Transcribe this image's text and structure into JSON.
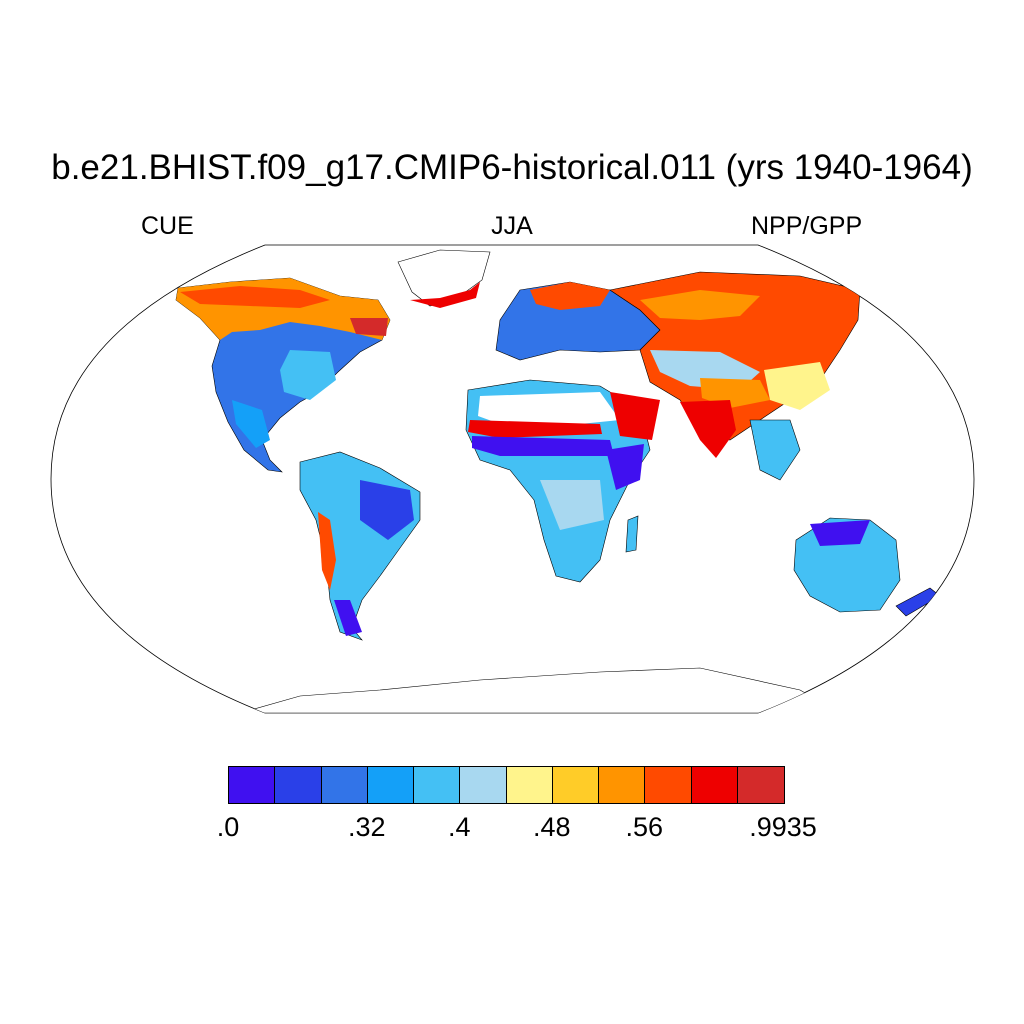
{
  "title": "b.e21.BHIST.f09_g17.CMIP6-historical.011 (yrs 1940-1964)",
  "subtitle_left": "CUE",
  "subtitle_center": "JJA",
  "subtitle_right": "NPP/GPP",
  "projection": "Robinson",
  "colorbar": {
    "colors": [
      "#4010f0",
      "#2a40e8",
      "#3274e8",
      "#14a0f8",
      "#44c0f4",
      "#a8d8f0",
      "#fff48c",
      "#ffcc28",
      "#ff9400",
      "#ff4a00",
      "#ee0000",
      "#d42a2a"
    ],
    "labels": [
      {
        "text": ".0",
        "boundary": 0
      },
      {
        "text": ".32",
        "boundary": 3
      },
      {
        "text": ".4",
        "boundary": 5
      },
      {
        "text": ".48",
        "boundary": 7
      },
      {
        "text": ".56",
        "boundary": 9
      },
      {
        "text": ".9935",
        "boundary": 12
      }
    ]
  }
}
